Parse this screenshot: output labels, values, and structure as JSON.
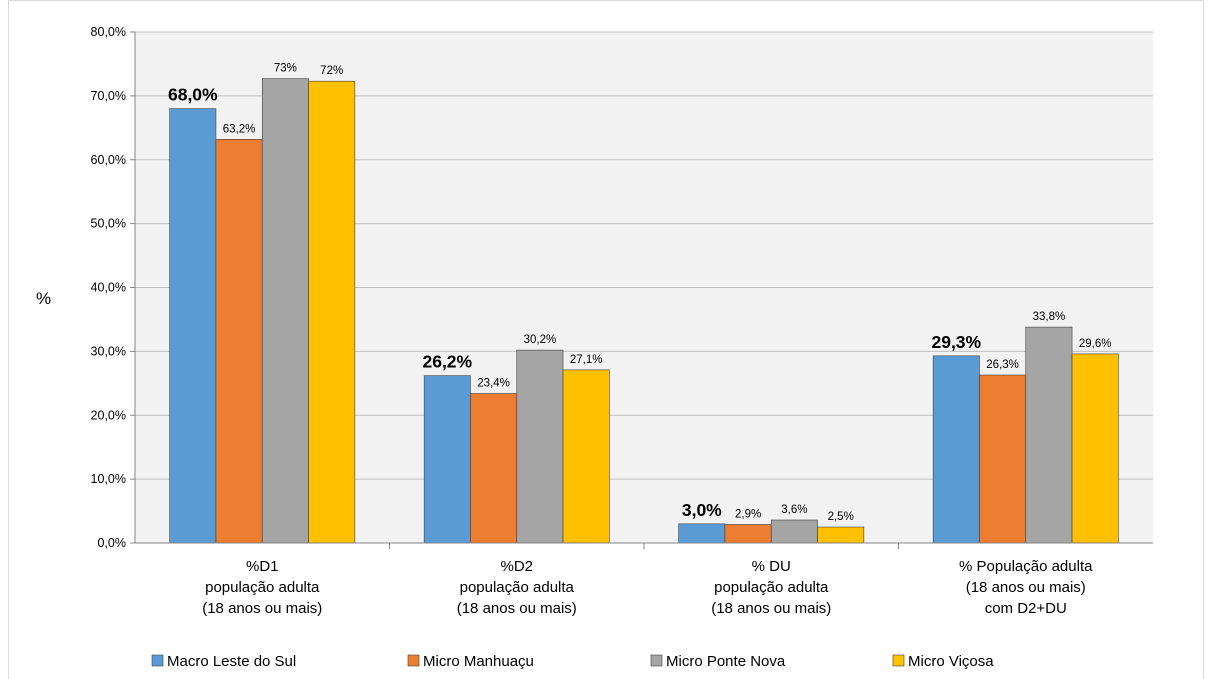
{
  "chart_data": {
    "type": "bar",
    "ylabel": "%",
    "ylim": [
      0,
      80
    ],
    "y_ticks": [
      "0,0%",
      "10,0%",
      "20,0%",
      "30,0%",
      "40,0%",
      "50,0%",
      "60,0%",
      "70,0%",
      "80,0%"
    ],
    "grid": true,
    "legend_position": "bottom",
    "categories": [
      [
        "%D1",
        "população adulta",
        "(18 anos ou mais)"
      ],
      [
        "%D2",
        "população adulta",
        "(18 anos ou mais)"
      ],
      [
        "% DU",
        "população adulta",
        "(18 anos ou mais)"
      ],
      [
        "% População adulta",
        "(18 anos ou mais)",
        "com D2+DU"
      ]
    ],
    "series": [
      {
        "name": "Macro Leste do Sul",
        "color": "#5b9bd5",
        "values": [
          68.0,
          26.2,
          3.0,
          29.3
        ],
        "labels": [
          "68,0%",
          "26,2%",
          "3,0%",
          "29,3%"
        ],
        "bold_labels": true
      },
      {
        "name": "Micro Manhuaçu",
        "color": "#ed7d31",
        "values": [
          63.2,
          23.4,
          2.9,
          26.3
        ],
        "labels": [
          "63,2%",
          "23,4%",
          "2,9%",
          "26,3%"
        ]
      },
      {
        "name": "Micro Ponte Nova",
        "color": "#a5a5a5",
        "values": [
          72.7,
          30.2,
          3.6,
          33.8
        ],
        "labels": [
          "73%",
          "30,2%",
          "3,6%",
          "33,8%"
        ]
      },
      {
        "name": "Micro Viçosa",
        "color": "#ffc000",
        "values": [
          72.3,
          27.1,
          2.5,
          29.6
        ],
        "labels": [
          "72%",
          "27,1%",
          "2,5%",
          "29,6%"
        ]
      }
    ],
    "plot_background": "#f2f2f2",
    "grid_color": "#bfbfbf"
  }
}
